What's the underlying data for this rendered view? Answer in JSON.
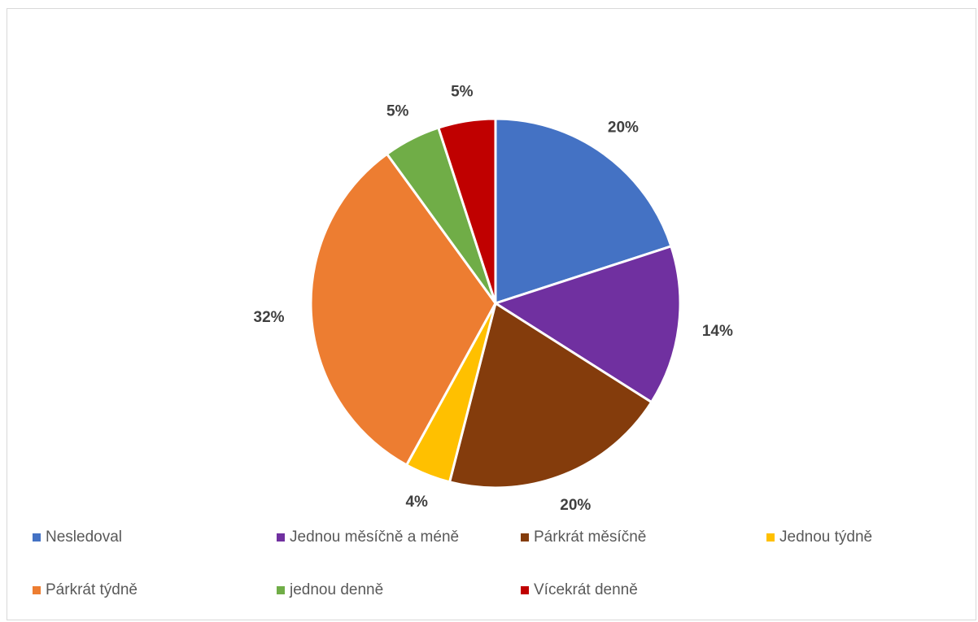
{
  "chart_data": {
    "type": "pie",
    "title": "",
    "categories": [
      "Nesledoval",
      "Jednou měsíčně a méně",
      "Párkrát měsíčně",
      "Jednou týdně",
      "Párkrát týdně",
      "jednou denně",
      "Vícekrát denně"
    ],
    "values": [
      20,
      14,
      20,
      4,
      32,
      5,
      5
    ],
    "data_labels": [
      "20%",
      "14%",
      "20%",
      "4%",
      "32%",
      "5%",
      "5%"
    ],
    "colors": [
      "#4472C4",
      "#7030A0",
      "#843C0C",
      "#FFC000",
      "#ED7D31",
      "#70AD47",
      "#C00000"
    ],
    "legend_position": "bottom"
  }
}
